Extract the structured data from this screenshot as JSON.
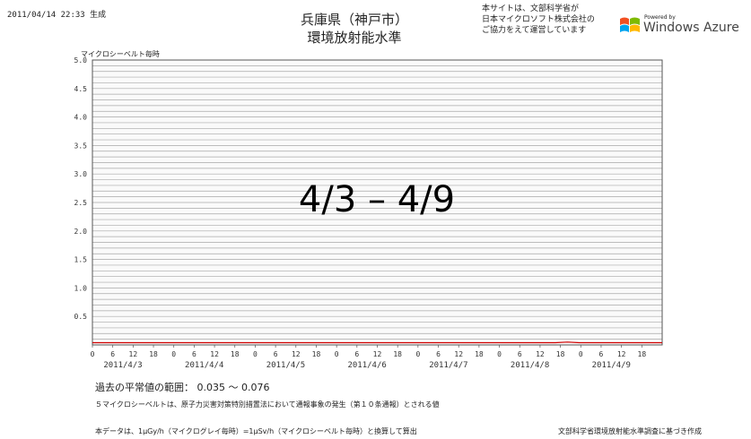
{
  "header": {
    "generated": "2011/04/14 22:33 生成",
    "title_line1": "兵庫県（神戸市）",
    "title_line2": "環境放射能水準",
    "notice_line1": "本サイトは、文部科学省が",
    "notice_line2": "日本マイクロソフト株式会社の",
    "notice_line3": "ご協力をえて運営しています",
    "logo_powered_by": "Powered by",
    "logo_text": "Windows Azure",
    "logo_colors": [
      "#f25022",
      "#7fba00",
      "#00a4ef",
      "#ffb900"
    ]
  },
  "overlay": {
    "label": "4/3 – 4/9"
  },
  "chart_data": {
    "type": "line",
    "ylabel": "マイクロシーベルト毎時",
    "ylim": [
      0,
      5.0
    ],
    "y_ticks": [
      "5.0",
      "4.5",
      "4.0",
      "3.5",
      "3.0",
      "2.5",
      "2.0",
      "1.5",
      "1.0",
      "0.5"
    ],
    "y_tick_values": [
      5.0,
      4.5,
      4.0,
      3.5,
      3.0,
      2.5,
      2.0,
      1.5,
      1.0,
      0.5
    ],
    "hour_ticks": [
      "0",
      "6",
      "12",
      "18"
    ],
    "days": [
      "2011/4/3",
      "2011/4/4",
      "2011/4/5",
      "2011/4/6",
      "2011/4/7",
      "2011/4/8",
      "2011/4/9"
    ],
    "grid": true,
    "grid_step": 0.1,
    "series": [
      {
        "color": "#d00000",
        "values": [
          0.04,
          0.04,
          0.04,
          0.04,
          0.04,
          0.04,
          0.04,
          0.04,
          0.04,
          0.04,
          0.04,
          0.04,
          0.04,
          0.04,
          0.04,
          0.04,
          0.04,
          0.04,
          0.04,
          0.04,
          0.04,
          0.04,
          0.04,
          0.04,
          0.04,
          0.04,
          0.04,
          0.04,
          0.04,
          0.04,
          0.04,
          0.04,
          0.04,
          0.04,
          0.04,
          0.04,
          0.04,
          0.04,
          0.04,
          0.04,
          0.05,
          0.04,
          0.04,
          0.04,
          0.04,
          0.04,
          0.04,
          0.04,
          0.04
        ]
      }
    ]
  },
  "footer": {
    "range_text": "過去の平常値の範囲： 0.035 ～ 0.076",
    "note1": "５マイクロシーベルトは、原子力災害対策特別措置法において通報事象の発生（第１０条通報）とされる値",
    "note2": "本データは、1μGy/h（マイクログレイ毎時）=1μSv/h（マイクロシーベルト毎時）と換算して算出",
    "note3": "文部科学省環境放射能水準調査に基づき作成"
  }
}
